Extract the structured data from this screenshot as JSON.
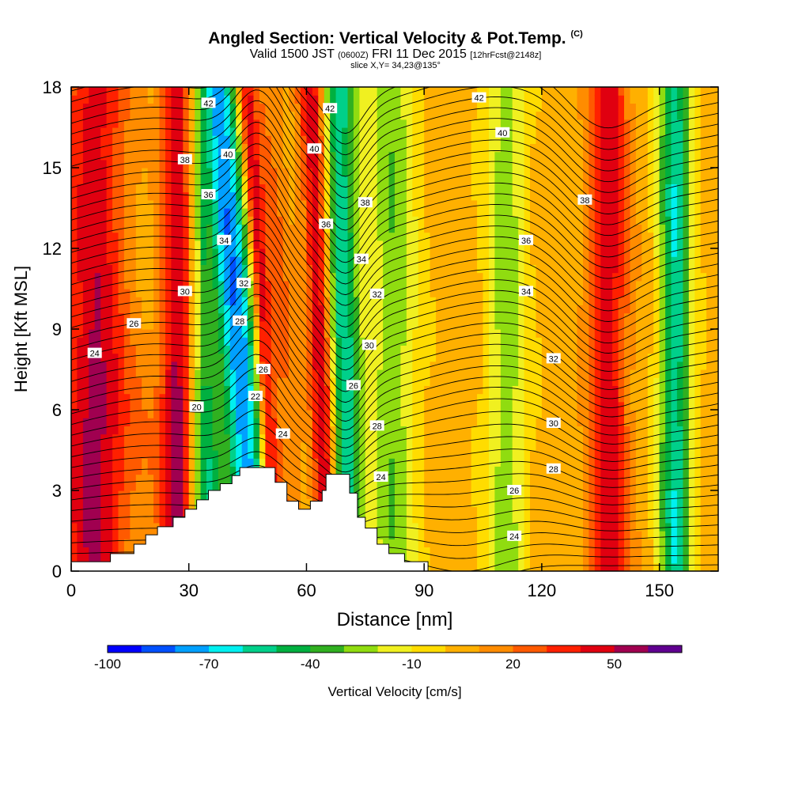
{
  "title": {
    "main": "Angled Section: Vertical Velocity & Pot.Temp.",
    "unit_tag": "(C)",
    "valid_a": "Valid 1500 JST",
    "valid_z": "(0600Z)",
    "valid_b": "FRI 11 Dec 2015",
    "fcst": "[12hrFcst@2148z]",
    "slice": "slice X,Y= 34,23@135°"
  },
  "chart_data": {
    "type": "heatmap",
    "xlabel": "Distance [nm]",
    "ylabel": "Height [Kft MSL]",
    "xlim": [
      0,
      165
    ],
    "ylim": [
      0,
      18
    ],
    "x_ticks": [
      "0",
      "30",
      "60",
      "90",
      "120",
      "150"
    ],
    "y_ticks": [
      "0",
      "3",
      "6",
      "9",
      "12",
      "15",
      "18"
    ],
    "colorbar": {
      "label": "Vertical Velocity [cm/s]",
      "tick_labels": [
        "-100",
        "-70",
        "-40",
        "-10",
        "20",
        "50"
      ],
      "tick_values": [
        -100,
        -70,
        -40,
        -10,
        20,
        50
      ],
      "bin_edges": [
        -100,
        -90,
        -80,
        -70,
        -60,
        -50,
        -40,
        -30,
        -20,
        -10,
        0,
        10,
        20,
        30,
        40,
        50,
        60,
        70
      ],
      "colors": [
        "#0000ff",
        "#0050ff",
        "#00a0ff",
        "#00f0f0",
        "#00d08a",
        "#00b040",
        "#30b020",
        "#90dc10",
        "#f0f020",
        "#ffdc00",
        "#ffb000",
        "#ff8c00",
        "#ff5a00",
        "#ff2000",
        "#e00010",
        "#a00050",
        "#600090"
      ]
    },
    "velocity_bands": [
      {
        "x": 6,
        "w": 8,
        "value": 42
      },
      {
        "x": 27,
        "w": 4,
        "value": 44
      },
      {
        "x": 35,
        "w": 4,
        "value": -52
      },
      {
        "x": 45,
        "w": 5,
        "value": -82
      },
      {
        "x": 51,
        "w": 2,
        "value": 48
      },
      {
        "x": 55,
        "w": 4,
        "value": 18
      },
      {
        "x": 65,
        "w": 3,
        "value": 52
      },
      {
        "x": 70,
        "w": 4,
        "value": -62
      },
      {
        "x": 82,
        "w": 6,
        "value": -32
      },
      {
        "x": 111,
        "w": 5,
        "value": -30
      },
      {
        "x": 137,
        "w": 5,
        "value": 42
      },
      {
        "x": 154,
        "w": 4,
        "value": -62
      }
    ],
    "theta_contour_labels": [
      {
        "x": 6,
        "y": 8.1,
        "label": "24"
      },
      {
        "x": 16,
        "y": 9.2,
        "label": "26"
      },
      {
        "x": 29,
        "y": 10.4,
        "label": "30"
      },
      {
        "x": 32,
        "y": 6.1,
        "label": "20"
      },
      {
        "x": 29,
        "y": 15.3,
        "label": "38"
      },
      {
        "x": 35,
        "y": 14.0,
        "label": "36"
      },
      {
        "x": 35,
        "y": 17.4,
        "label": "42"
      },
      {
        "x": 40,
        "y": 15.5,
        "label": "40"
      },
      {
        "x": 39,
        "y": 12.3,
        "label": "34"
      },
      {
        "x": 44,
        "y": 10.7,
        "label": "32"
      },
      {
        "x": 43,
        "y": 9.3,
        "label": "28"
      },
      {
        "x": 47,
        "y": 6.5,
        "label": "22"
      },
      {
        "x": 49,
        "y": 7.5,
        "label": "26"
      },
      {
        "x": 54,
        "y": 5.1,
        "label": "24"
      },
      {
        "x": 62,
        "y": 15.7,
        "label": "40"
      },
      {
        "x": 66,
        "y": 17.2,
        "label": "42"
      },
      {
        "x": 65,
        "y": 12.9,
        "label": "36"
      },
      {
        "x": 75,
        "y": 13.7,
        "label": "38"
      },
      {
        "x": 74,
        "y": 11.6,
        "label": "34"
      },
      {
        "x": 78,
        "y": 10.3,
        "label": "32"
      },
      {
        "x": 76,
        "y": 8.4,
        "label": "30"
      },
      {
        "x": 72,
        "y": 6.9,
        "label": "26"
      },
      {
        "x": 78,
        "y": 5.4,
        "label": "28"
      },
      {
        "x": 79,
        "y": 3.5,
        "label": "24"
      },
      {
        "x": 104,
        "y": 17.6,
        "label": "42"
      },
      {
        "x": 110,
        "y": 16.3,
        "label": "40"
      },
      {
        "x": 116,
        "y": 12.3,
        "label": "36"
      },
      {
        "x": 116,
        "y": 10.4,
        "label": "34"
      },
      {
        "x": 123,
        "y": 7.9,
        "label": "32"
      },
      {
        "x": 123,
        "y": 5.5,
        "label": "30"
      },
      {
        "x": 123,
        "y": 3.8,
        "label": "28"
      },
      {
        "x": 113,
        "y": 3.0,
        "label": "26"
      },
      {
        "x": 113,
        "y": 1.3,
        "label": "24"
      },
      {
        "x": 131,
        "y": 13.8,
        "label": "38"
      }
    ],
    "terrain": [
      [
        0,
        0.35
      ],
      [
        10,
        0.35
      ],
      [
        10,
        0.65
      ],
      [
        16,
        0.65
      ],
      [
        16,
        1.0
      ],
      [
        19,
        1.0
      ],
      [
        19,
        1.35
      ],
      [
        22,
        1.35
      ],
      [
        22,
        1.65
      ],
      [
        26,
        1.65
      ],
      [
        26,
        2.0
      ],
      [
        29,
        2.0
      ],
      [
        29,
        2.3
      ],
      [
        32,
        2.3
      ],
      [
        32,
        2.65
      ],
      [
        35,
        2.65
      ],
      [
        35,
        3.0
      ],
      [
        38,
        3.0
      ],
      [
        38,
        3.25
      ],
      [
        41,
        3.25
      ],
      [
        41,
        3.55
      ],
      [
        43,
        3.55
      ],
      [
        43,
        3.85
      ],
      [
        52,
        3.85
      ],
      [
        52,
        3.3
      ],
      [
        55,
        3.3
      ],
      [
        55,
        2.6
      ],
      [
        58,
        2.6
      ],
      [
        58,
        2.3
      ],
      [
        61,
        2.3
      ],
      [
        61,
        2.6
      ],
      [
        64,
        2.6
      ],
      [
        64,
        3.0
      ],
      [
        65,
        3.0
      ],
      [
        65,
        3.6
      ],
      [
        71,
        3.6
      ],
      [
        71,
        2.9
      ],
      [
        73,
        2.9
      ],
      [
        73,
        2.0
      ],
      [
        75,
        2.0
      ],
      [
        75,
        1.6
      ],
      [
        78,
        1.6
      ],
      [
        78,
        1.0
      ],
      [
        81,
        1.0
      ],
      [
        81,
        0.65
      ],
      [
        85,
        0.65
      ],
      [
        85,
        0.35
      ],
      [
        91,
        0.35
      ],
      [
        91,
        0
      ]
    ]
  }
}
